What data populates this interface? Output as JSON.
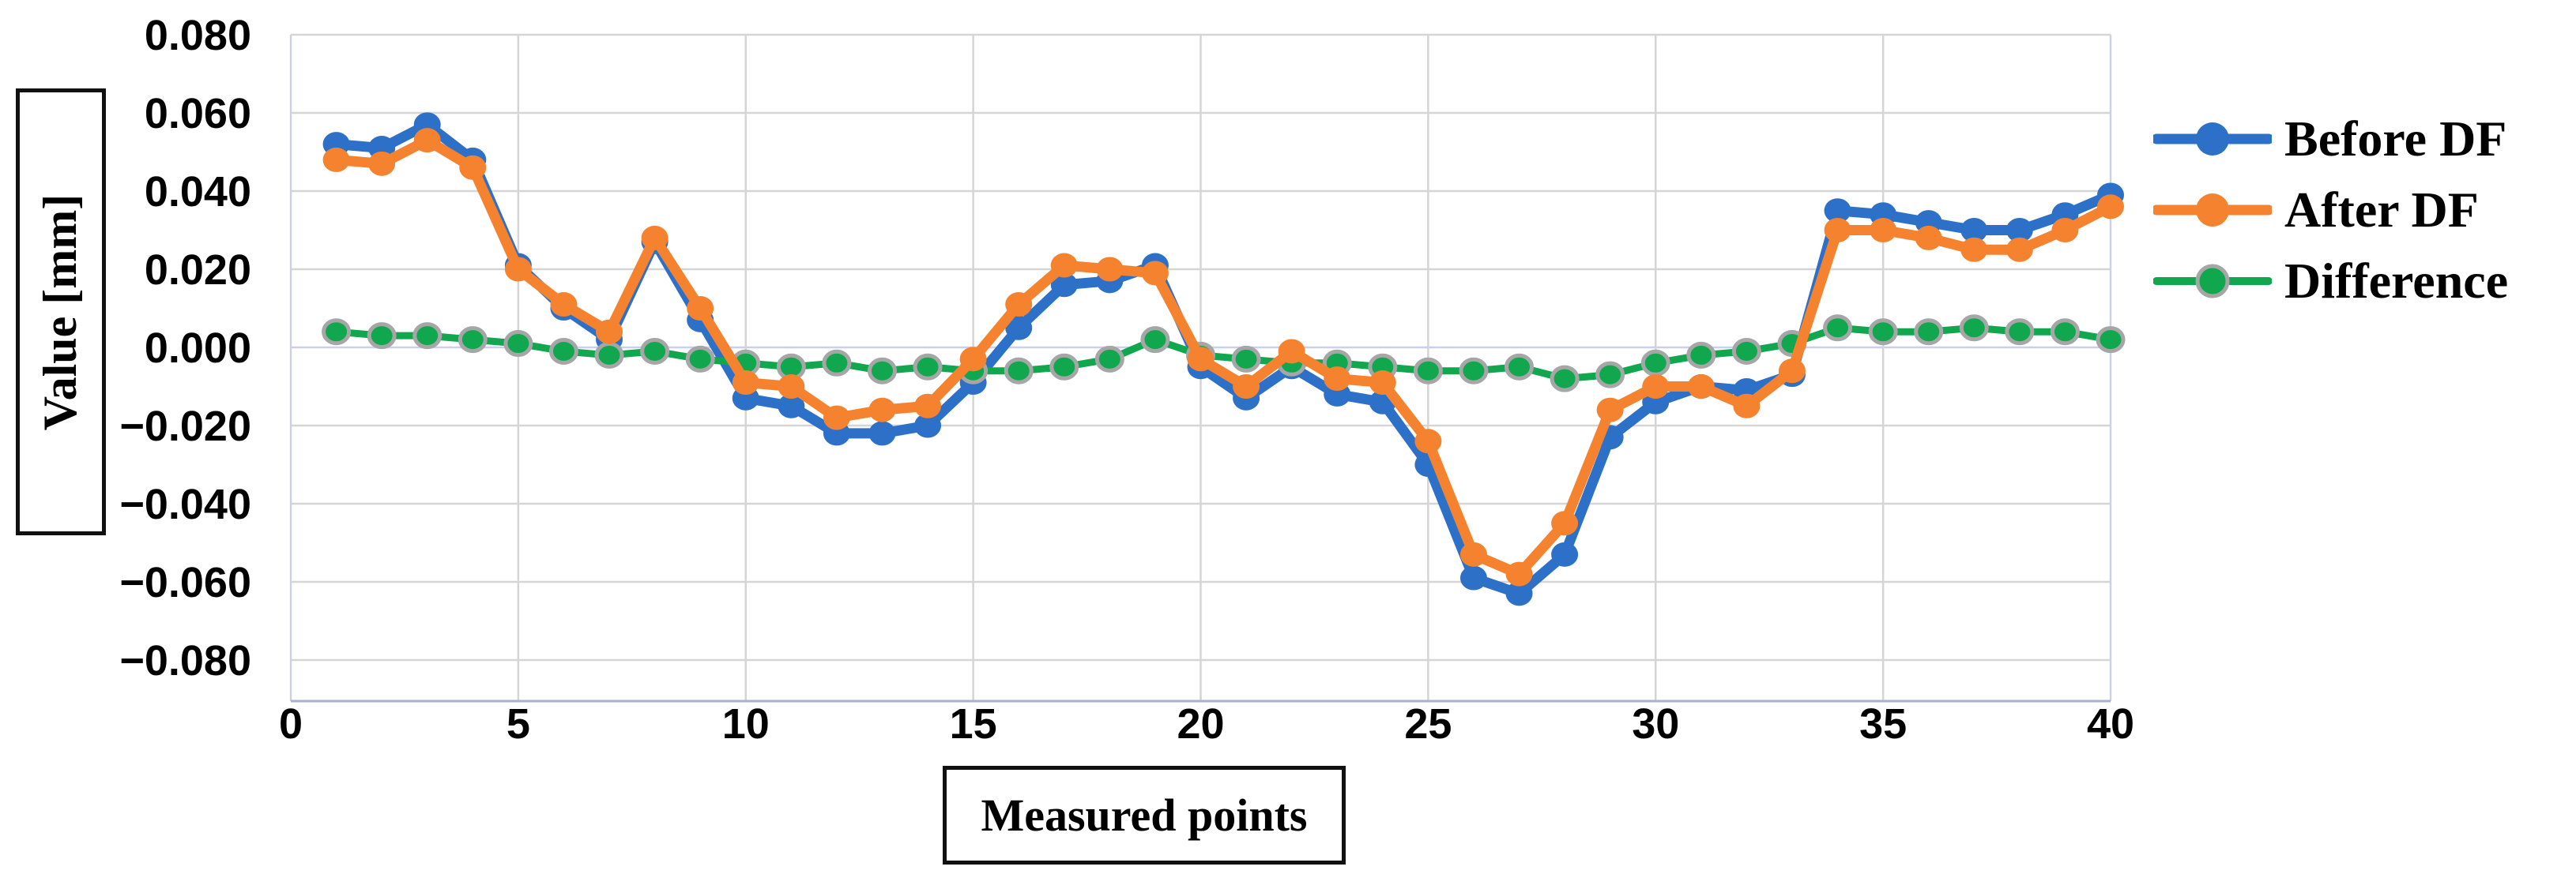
{
  "chart_data": {
    "type": "line",
    "title": "",
    "xlabel": "Measured points",
    "ylabel": "Value [mm]",
    "xlim": [
      0,
      40
    ],
    "ylim": [
      -0.08,
      0.08
    ],
    "grid": true,
    "legend_position": "right",
    "x_ticks": [
      0,
      5,
      10,
      15,
      20,
      25,
      30,
      35,
      40
    ],
    "y_tick_labels": [
      "0.080",
      "0.060",
      "0.040",
      "0.020",
      "0.000",
      "−0.020",
      "−0.040",
      "−0.060",
      "−0.080"
    ],
    "x": [
      1,
      2,
      3,
      4,
      5,
      6,
      7,
      8,
      9,
      10,
      11,
      12,
      13,
      14,
      15,
      16,
      17,
      18,
      19,
      20,
      21,
      22,
      23,
      24,
      25,
      26,
      27,
      28,
      29,
      30,
      31,
      32,
      33,
      34,
      35,
      36,
      37,
      38,
      39,
      40
    ],
    "series": [
      {
        "name": "Before DF",
        "color": "#2D70C8",
        "values": [
          0.052,
          0.051,
          0.057,
          0.048,
          0.021,
          0.01,
          0.002,
          0.027,
          0.007,
          -0.013,
          -0.015,
          -0.022,
          -0.022,
          -0.02,
          -0.009,
          0.005,
          0.016,
          0.017,
          0.021,
          -0.005,
          -0.013,
          -0.005,
          -0.012,
          -0.014,
          -0.03,
          -0.059,
          -0.063,
          -0.053,
          -0.023,
          -0.014,
          -0.01,
          -0.011,
          -0.007,
          0.035,
          0.034,
          0.032,
          0.03,
          0.03,
          0.034,
          0.039
        ]
      },
      {
        "name": "After DF",
        "color": "#F5822E",
        "values": [
          0.048,
          0.047,
          0.053,
          0.046,
          0.02,
          0.011,
          0.004,
          0.028,
          0.01,
          -0.009,
          -0.01,
          -0.018,
          -0.016,
          -0.015,
          -0.003,
          0.011,
          0.021,
          0.02,
          0.019,
          -0.003,
          -0.01,
          -0.001,
          -0.008,
          -0.009,
          -0.024,
          -0.053,
          -0.058,
          -0.045,
          -0.016,
          -0.01,
          -0.01,
          -0.015,
          -0.006,
          0.03,
          0.03,
          0.028,
          0.025,
          0.025,
          0.03,
          0.036
        ]
      },
      {
        "name": "Difference",
        "color": "#10A74F",
        "marker_ring": "#A6A6A6",
        "values": [
          0.004,
          0.003,
          0.003,
          0.002,
          0.001,
          -0.001,
          -0.002,
          -0.001,
          -0.003,
          -0.004,
          -0.005,
          -0.004,
          -0.006,
          -0.005,
          -0.006,
          -0.006,
          -0.005,
          -0.003,
          0.002,
          -0.002,
          -0.003,
          -0.004,
          -0.004,
          -0.005,
          -0.006,
          -0.006,
          -0.005,
          -0.008,
          -0.007,
          -0.004,
          -0.002,
          -0.001,
          0.001,
          0.005,
          0.004,
          0.004,
          0.005,
          0.004,
          0.004,
          0.002
        ]
      }
    ]
  },
  "styles": {
    "grid_color": "#D5D5D5",
    "zero_line_color": "#C9CFEC",
    "plot_border_color": "#CCD2E2",
    "axis_line_color": "#A9B2C8",
    "text_color": "#000000",
    "background": "#FFFFFF"
  }
}
